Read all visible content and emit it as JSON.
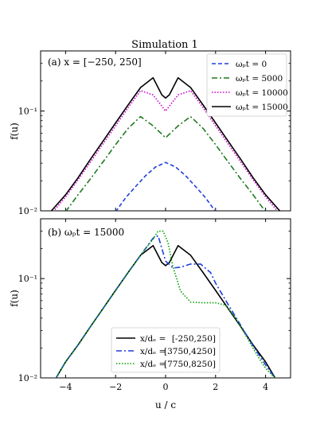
{
  "figure_title": "Simulation 1",
  "chart_data": [
    {
      "type": "line",
      "panel_label": "(a) x = [−250, 250]",
      "xlabel": "",
      "ylabel": "f(u)",
      "yscale": "log",
      "xlim": [
        -5,
        5
      ],
      "ylim": [
        0.01,
        0.4
      ],
      "xticks": [
        -4,
        -2,
        0,
        2,
        4
      ],
      "ytick_labels": [
        "10⁻²",
        "10⁻¹"
      ],
      "legend_position": "top-right",
      "series": [
        {
          "name": "ωₚt = 0",
          "color": "#1f3fdc",
          "dash": "dashed",
          "x": [
            -2.0,
            -1.6,
            -1.2,
            -0.8,
            -0.4,
            0.0,
            0.4,
            0.8,
            1.2,
            1.6,
            2.0
          ],
          "y": [
            0.0098,
            0.0135,
            0.0175,
            0.0225,
            0.0275,
            0.0305,
            0.0275,
            0.0225,
            0.0175,
            0.0135,
            0.0098
          ]
        },
        {
          "name": "ωₚt = 5000",
          "color": "#1e7a1e",
          "dash": "dashdot",
          "x": [
            -4.0,
            -3.5,
            -3.0,
            -2.5,
            -2.0,
            -1.5,
            -1.0,
            -0.5,
            0.0,
            0.5,
            1.0,
            1.5,
            2.0,
            2.5,
            3.0,
            3.5,
            4.0
          ],
          "y": [
            0.0098,
            0.0145,
            0.021,
            0.031,
            0.046,
            0.067,
            0.088,
            0.071,
            0.054,
            0.071,
            0.088,
            0.067,
            0.046,
            0.031,
            0.021,
            0.0145,
            0.0098
          ]
        },
        {
          "name": "ωₚt = 10000",
          "color": "#cc00cc",
          "dash": "dotted",
          "x": [
            -4.5,
            -4.0,
            -3.5,
            -3.0,
            -2.5,
            -2.0,
            -1.5,
            -1.0,
            -0.5,
            0.0,
            0.5,
            1.0,
            1.5,
            2.0,
            2.5,
            3.0,
            3.5,
            4.0,
            4.5
          ],
          "y": [
            0.0098,
            0.0138,
            0.0205,
            0.031,
            0.047,
            0.071,
            0.108,
            0.16,
            0.145,
            0.1,
            0.145,
            0.16,
            0.108,
            0.071,
            0.047,
            0.031,
            0.0205,
            0.0138,
            0.0098
          ]
        },
        {
          "name": "ωₚt = 15000",
          "color": "#000000",
          "dash": "solid",
          "x": [
            -4.6,
            -4.0,
            -3.5,
            -3.0,
            -2.5,
            -2.0,
            -1.5,
            -1.0,
            -0.5,
            -0.15,
            0.0,
            0.15,
            0.5,
            1.0,
            1.5,
            2.0,
            2.5,
            3.0,
            3.5,
            4.0,
            4.6
          ],
          "y": [
            0.0098,
            0.0145,
            0.0215,
            0.033,
            0.05,
            0.076,
            0.115,
            0.172,
            0.215,
            0.145,
            0.135,
            0.145,
            0.215,
            0.172,
            0.115,
            0.076,
            0.05,
            0.033,
            0.0215,
            0.0145,
            0.0098
          ]
        }
      ]
    },
    {
      "type": "line",
      "panel_label": "(b) ωₚt = 15000",
      "xlabel": "u / c",
      "ylabel": "f(u)",
      "yscale": "log",
      "xlim": [
        -5,
        5
      ],
      "ylim": [
        0.01,
        0.4
      ],
      "xticks": [
        -4,
        -2,
        0,
        2,
        4
      ],
      "xtick_labels": [
        "−4",
        "−2",
        "0",
        "2",
        "4"
      ],
      "ytick_labels": [
        "10⁻²",
        "10⁻¹"
      ],
      "legend_position": "bottom-center",
      "legend_title_prefix": "x/dₑ =",
      "series": [
        {
          "name": "[-250,250]",
          "color": "#000000",
          "dash": "solid",
          "x": [
            -4.4,
            -4.0,
            -3.5,
            -3.0,
            -2.5,
            -2.0,
            -1.5,
            -1.0,
            -0.5,
            -0.15,
            0.0,
            0.15,
            0.5,
            1.0,
            1.5,
            2.0,
            2.5,
            3.0,
            3.5,
            4.0,
            4.4
          ],
          "y": [
            0.0098,
            0.0145,
            0.0215,
            0.033,
            0.05,
            0.076,
            0.115,
            0.172,
            0.215,
            0.145,
            0.135,
            0.145,
            0.215,
            0.172,
            0.115,
            0.076,
            0.05,
            0.033,
            0.0215,
            0.0145,
            0.0098
          ]
        },
        {
          "name": "[3750,4250]",
          "color": "#1f3fdc",
          "dash": "dashdot",
          "x": [
            -4.4,
            -4.0,
            -3.5,
            -3.0,
            -2.5,
            -2.0,
            -1.5,
            -1.0,
            -0.5,
            -0.3,
            0.0,
            0.3,
            0.6,
            1.0,
            1.4,
            1.8,
            2.0,
            2.5,
            3.0,
            3.5,
            4.0,
            4.4
          ],
          "y": [
            0.0098,
            0.0145,
            0.0215,
            0.033,
            0.05,
            0.076,
            0.115,
            0.172,
            0.255,
            0.27,
            0.15,
            0.128,
            0.13,
            0.14,
            0.14,
            0.115,
            0.09,
            0.055,
            0.034,
            0.021,
            0.0135,
            0.0098
          ]
        },
        {
          "name": "[7750,8250]",
          "color": "#00a000",
          "dash": "dotted",
          "x": [
            -4.4,
            -4.0,
            -3.5,
            -3.0,
            -2.5,
            -2.0,
            -1.5,
            -1.0,
            -0.5,
            -0.3,
            -0.1,
            0.1,
            0.3,
            0.6,
            1.0,
            1.5,
            2.0,
            2.4,
            2.8,
            3.2,
            3.6,
            4.0,
            4.4
          ],
          "y": [
            0.0098,
            0.0145,
            0.0215,
            0.033,
            0.05,
            0.076,
            0.115,
            0.172,
            0.25,
            0.3,
            0.3,
            0.23,
            0.13,
            0.075,
            0.058,
            0.057,
            0.057,
            0.054,
            0.04,
            0.027,
            0.018,
            0.0125,
            0.0098
          ]
        }
      ]
    }
  ]
}
